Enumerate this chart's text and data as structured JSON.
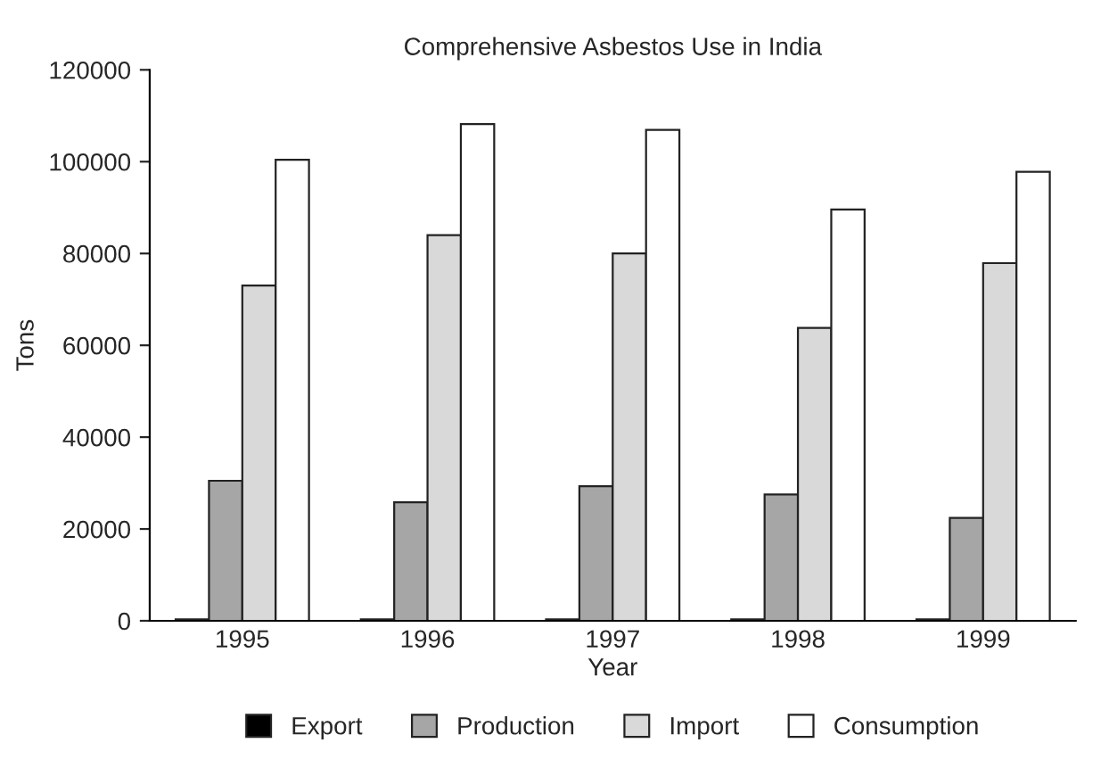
{
  "chart_data": {
    "type": "bar",
    "title": "Comprehensive Asbestos Use in India",
    "xlabel": "Year",
    "ylabel": "Tons",
    "categories": [
      "1995",
      "1996",
      "1997",
      "1998",
      "1999"
    ],
    "series": [
      {
        "name": "Export",
        "color": "#000000",
        "values": [
          300,
          300,
          300,
          300,
          300
        ]
      },
      {
        "name": "Production",
        "color": "#a6a6a6",
        "values": [
          30500,
          25800,
          29300,
          27500,
          22400
        ]
      },
      {
        "name": "Import",
        "color": "#d9d9d9",
        "values": [
          73000,
          84000,
          80000,
          63800,
          77900
        ]
      },
      {
        "name": "Consumption",
        "color": "#ffffff",
        "values": [
          100400,
          108200,
          106900,
          89600,
          97800
        ]
      }
    ],
    "ylim": [
      0,
      120000
    ],
    "yticks": [
      0,
      20000,
      40000,
      60000,
      80000,
      100000,
      120000
    ],
    "grid": false,
    "legend": "bottom"
  }
}
